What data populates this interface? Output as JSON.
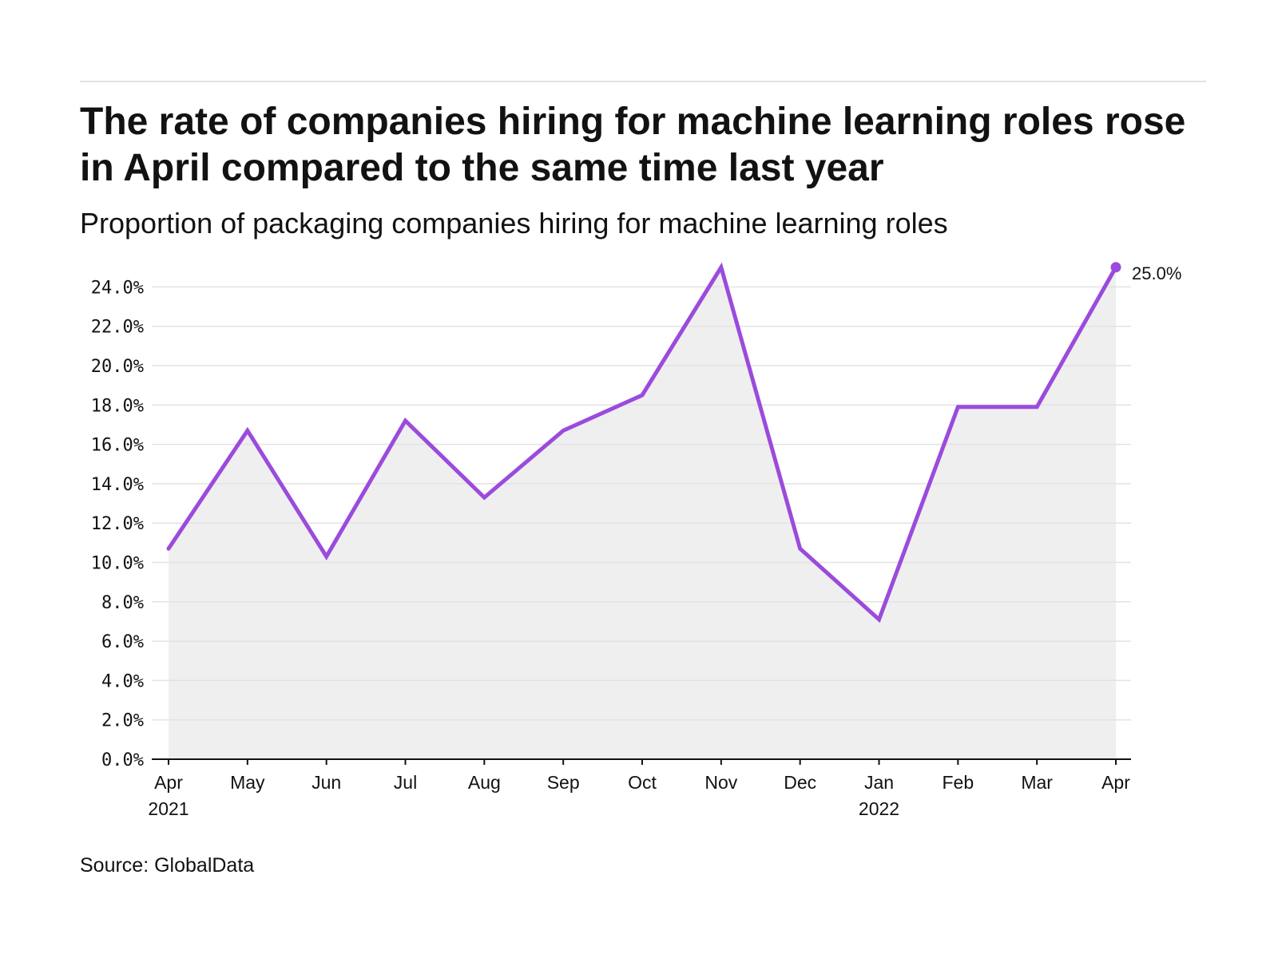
{
  "header": {
    "title": "The rate of companies hiring for machine learning roles rose in April compared to the same time last year",
    "subtitle": "Proportion of packaging companies hiring for machine learning roles"
  },
  "footer": {
    "source": "Source: GlobalData"
  },
  "colors": {
    "line": "#9b4bdc",
    "area": "#efefef",
    "grid": "#e3e3e3",
    "axis": "#121212"
  },
  "chart_data": {
    "type": "line",
    "title": "The rate of companies hiring for machine learning roles rose in April compared to the same time last year",
    "subtitle": "Proportion of packaging companies hiring for machine learning roles",
    "xlabel": "",
    "ylabel": "",
    "categories": [
      "Apr 2021",
      "May",
      "Jun",
      "Jul",
      "Aug",
      "Sep",
      "Oct",
      "Nov",
      "Dec",
      "Jan 2022",
      "Feb",
      "Mar",
      "Apr"
    ],
    "x_tick_labels": [
      [
        "Apr",
        "2021"
      ],
      [
        "May"
      ],
      [
        "Jun"
      ],
      [
        "Jul"
      ],
      [
        "Aug"
      ],
      [
        "Sep"
      ],
      [
        "Oct"
      ],
      [
        "Nov"
      ],
      [
        "Dec"
      ],
      [
        "Jan",
        "2022"
      ],
      [
        "Feb"
      ],
      [
        "Mar"
      ],
      [
        "Apr"
      ]
    ],
    "series": [
      {
        "values": [
          10.7,
          16.7,
          10.3,
          17.2,
          13.3,
          16.7,
          18.5,
          25.0,
          10.7,
          7.1,
          17.9,
          17.9,
          25.0
        ]
      }
    ],
    "ylim": [
      0,
      25
    ],
    "y_ticks": [
      0,
      2,
      4,
      6,
      8,
      10,
      12,
      14,
      16,
      18,
      20,
      22,
      24
    ],
    "y_tick_labels": [
      "0.0%",
      "2.0%",
      "4.0%",
      "6.0%",
      "8.0%",
      "10.0%",
      "12.0%",
      "14.0%",
      "16.0%",
      "18.0%",
      "20.0%",
      "22.0%",
      "24.0%"
    ],
    "grid": true,
    "area_fill": true,
    "end_point_label": "25.0%",
    "legend": "none"
  }
}
